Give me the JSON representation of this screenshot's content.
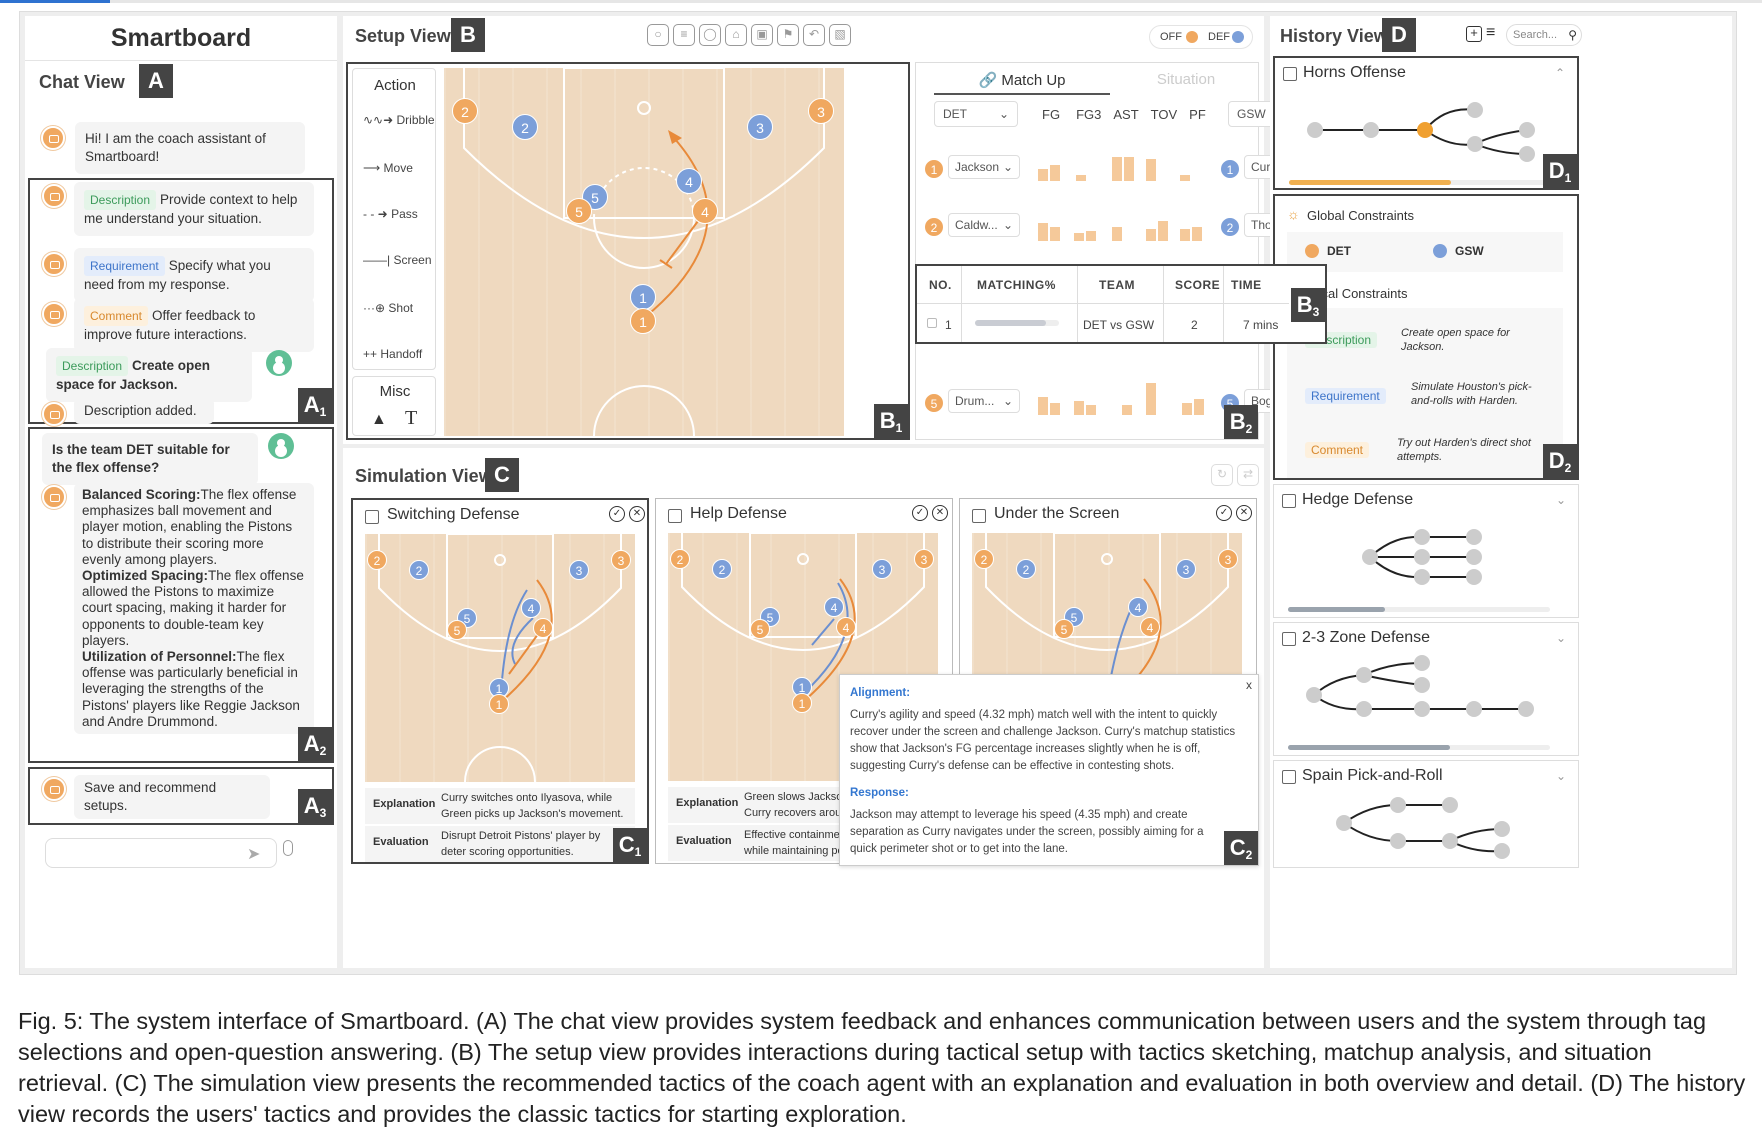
{
  "app": {
    "title": "Smartboard"
  },
  "chat": {
    "title": "Chat View",
    "tag": "A",
    "greeting": "Hi! I am the coach assistant of Smartboard!",
    "a1": {
      "tag": "A",
      "sub": "1",
      "items": [
        {
          "chip": "Description",
          "text": "Provide context to help me understand your situation."
        },
        {
          "chip": "Requirement",
          "text": "Specify what you need from my response."
        },
        {
          "chip": "Comment",
          "text": "Offer feedback to improve future interactions."
        }
      ],
      "user_chip": "Description",
      "user_text": "Create open space for Jackson.",
      "ack": "Description added."
    },
    "a2": {
      "tag": "A",
      "sub": "2",
      "question": "Is the team DET suitable for the flex offense?",
      "answer": [
        {
          "head": "Balanced Scoring:",
          "text": "The flex offense emphasizes ball movement and player motion, enabling the Pistons to distribute their scoring more evenly among players."
        },
        {
          "head": "Optimized Spacing:",
          "text": "The flex offense allowed the Pistons to maximize court spacing, making it harder for opponents to double-team key players."
        },
        {
          "head": "Utilization of Personnel:",
          "text": "The flex offense was particularly beneficial in leveraging the strengths of the Pistons' players like Reggie Jackson and Andre Drummond."
        }
      ]
    },
    "a3": {
      "tag": "A",
      "sub": "3",
      "text": "Save and recommend setups."
    },
    "input": {
      "placeholder": ""
    }
  },
  "setup": {
    "title": "Setup View",
    "tag": "B",
    "toggle_off": "OFF",
    "toggle_def": "DEF",
    "action_title": "Action",
    "actions": [
      "Dribble",
      "Move",
      "Pass",
      "Screen",
      "Shot",
      "Handoff"
    ],
    "misc_title": "Misc",
    "b1": {
      "tag": "B",
      "sub": "1"
    },
    "b2": {
      "tag": "B",
      "sub": "2"
    },
    "b3": {
      "tag": "B",
      "sub": "3"
    },
    "tabs": {
      "matchup": "Match Up",
      "situation": "Situation"
    },
    "team_left": "DET",
    "team_right": "GSW",
    "stat_cols": [
      "FG",
      "FG3",
      "AST",
      "TOV",
      "PF"
    ],
    "matchups": [
      {
        "n": "1",
        "left": "Jackson",
        "right": "Curry"
      },
      {
        "n": "2",
        "left": "Caldw...",
        "right": "Thom..."
      },
      {
        "n": "5",
        "left": "Drum...",
        "right": "Bogut"
      }
    ],
    "situation_table": {
      "headers": [
        "NO.",
        "MATCHING%",
        "TEAM",
        "SCORE",
        "TIME"
      ],
      "rows": [
        {
          "no": "1",
          "team": "DET vs GSW",
          "score": "2",
          "time": "7 mins",
          "match": 0.85
        }
      ]
    }
  },
  "simulation": {
    "title": "Simulation View",
    "tag": "C",
    "cards": [
      {
        "title": "Switching Defense",
        "explanation_label": "Explanation",
        "explanation": "Curry switches onto Ilyasova, while Green picks up Jackson's movement.",
        "evaluation_label": "Evaluation",
        "evaluation": "Disrupt Detroit Pistons' player by deter scoring opportunities."
      },
      {
        "title": "Help Defense",
        "explanation_label": "Explanation",
        "explanation": "Green slows Jackso Curry recovers arou",
        "evaluation_label": "Evaluation",
        "evaluation": "Effective containmer while maintaining pe"
      },
      {
        "title": "Under the Screen",
        "explanation_label": "",
        "explanation": "",
        "evaluation_label": "",
        "evaluation": ""
      }
    ],
    "c1": {
      "tag": "C",
      "sub": "1"
    },
    "c2": {
      "tag": "C",
      "sub": "2"
    },
    "popup": {
      "close": "x",
      "alignment_label": "Alignment:",
      "alignment": "Curry's agility and speed (4.32 mph) match well with the intent to quickly recover under the screen and challenge Jackson. Curry's matchup statistics show that Jackson's FG percentage increases slightly when he is off, suggesting Curry's defense can be effective in contesting shots.",
      "response_label": "Response:",
      "response": "Jackson may attempt to leverage his speed (4.35 mph) and create separation as Curry navigates under the screen, possibly aiming for a quick perimeter shot or to get into the lane."
    }
  },
  "history": {
    "title": "History View",
    "tag": "D",
    "search_placeholder": "Search...",
    "d1": {
      "tag": "D",
      "sub": "1"
    },
    "d2": {
      "tag": "D",
      "sub": "2"
    },
    "cards": [
      {
        "title": "Horns Offense",
        "progress": 0.62
      },
      {
        "title": "Hedge Defense",
        "progress": 0.37
      },
      {
        "title": "2-3 Zone Defense",
        "progress": 0.62
      },
      {
        "title": "Spain Pick-and-Roll",
        "progress": 0
      }
    ],
    "global_title": "Global Constraints",
    "global_teams": [
      "DET",
      "GSW"
    ],
    "local_title": "Local Constraints",
    "local": [
      {
        "chip": "Description",
        "text": "Create open space for Jackson."
      },
      {
        "chip": "Requirement",
        "text": "Simulate Houston's pick-and-rolls with Harden."
      },
      {
        "chip": "Comment",
        "text": "Try out Harden's direct shot attempts."
      }
    ]
  },
  "caption": "Fig. 5: The system interface of Smartboard. (A) The chat view provides system feedback and enhances communication between users and the system through tag selections and open-question answering. (B) The setup view provides interactions during tactical setup with tactics sketching, matchup analysis, and situation retrieval. (C) The simulation view presents the recommended tactics of the coach agent with an explanation and evaluation in both overview and detail. (D) The history view records the users' tactics and provides the classic tactics for starting exploration."
}
